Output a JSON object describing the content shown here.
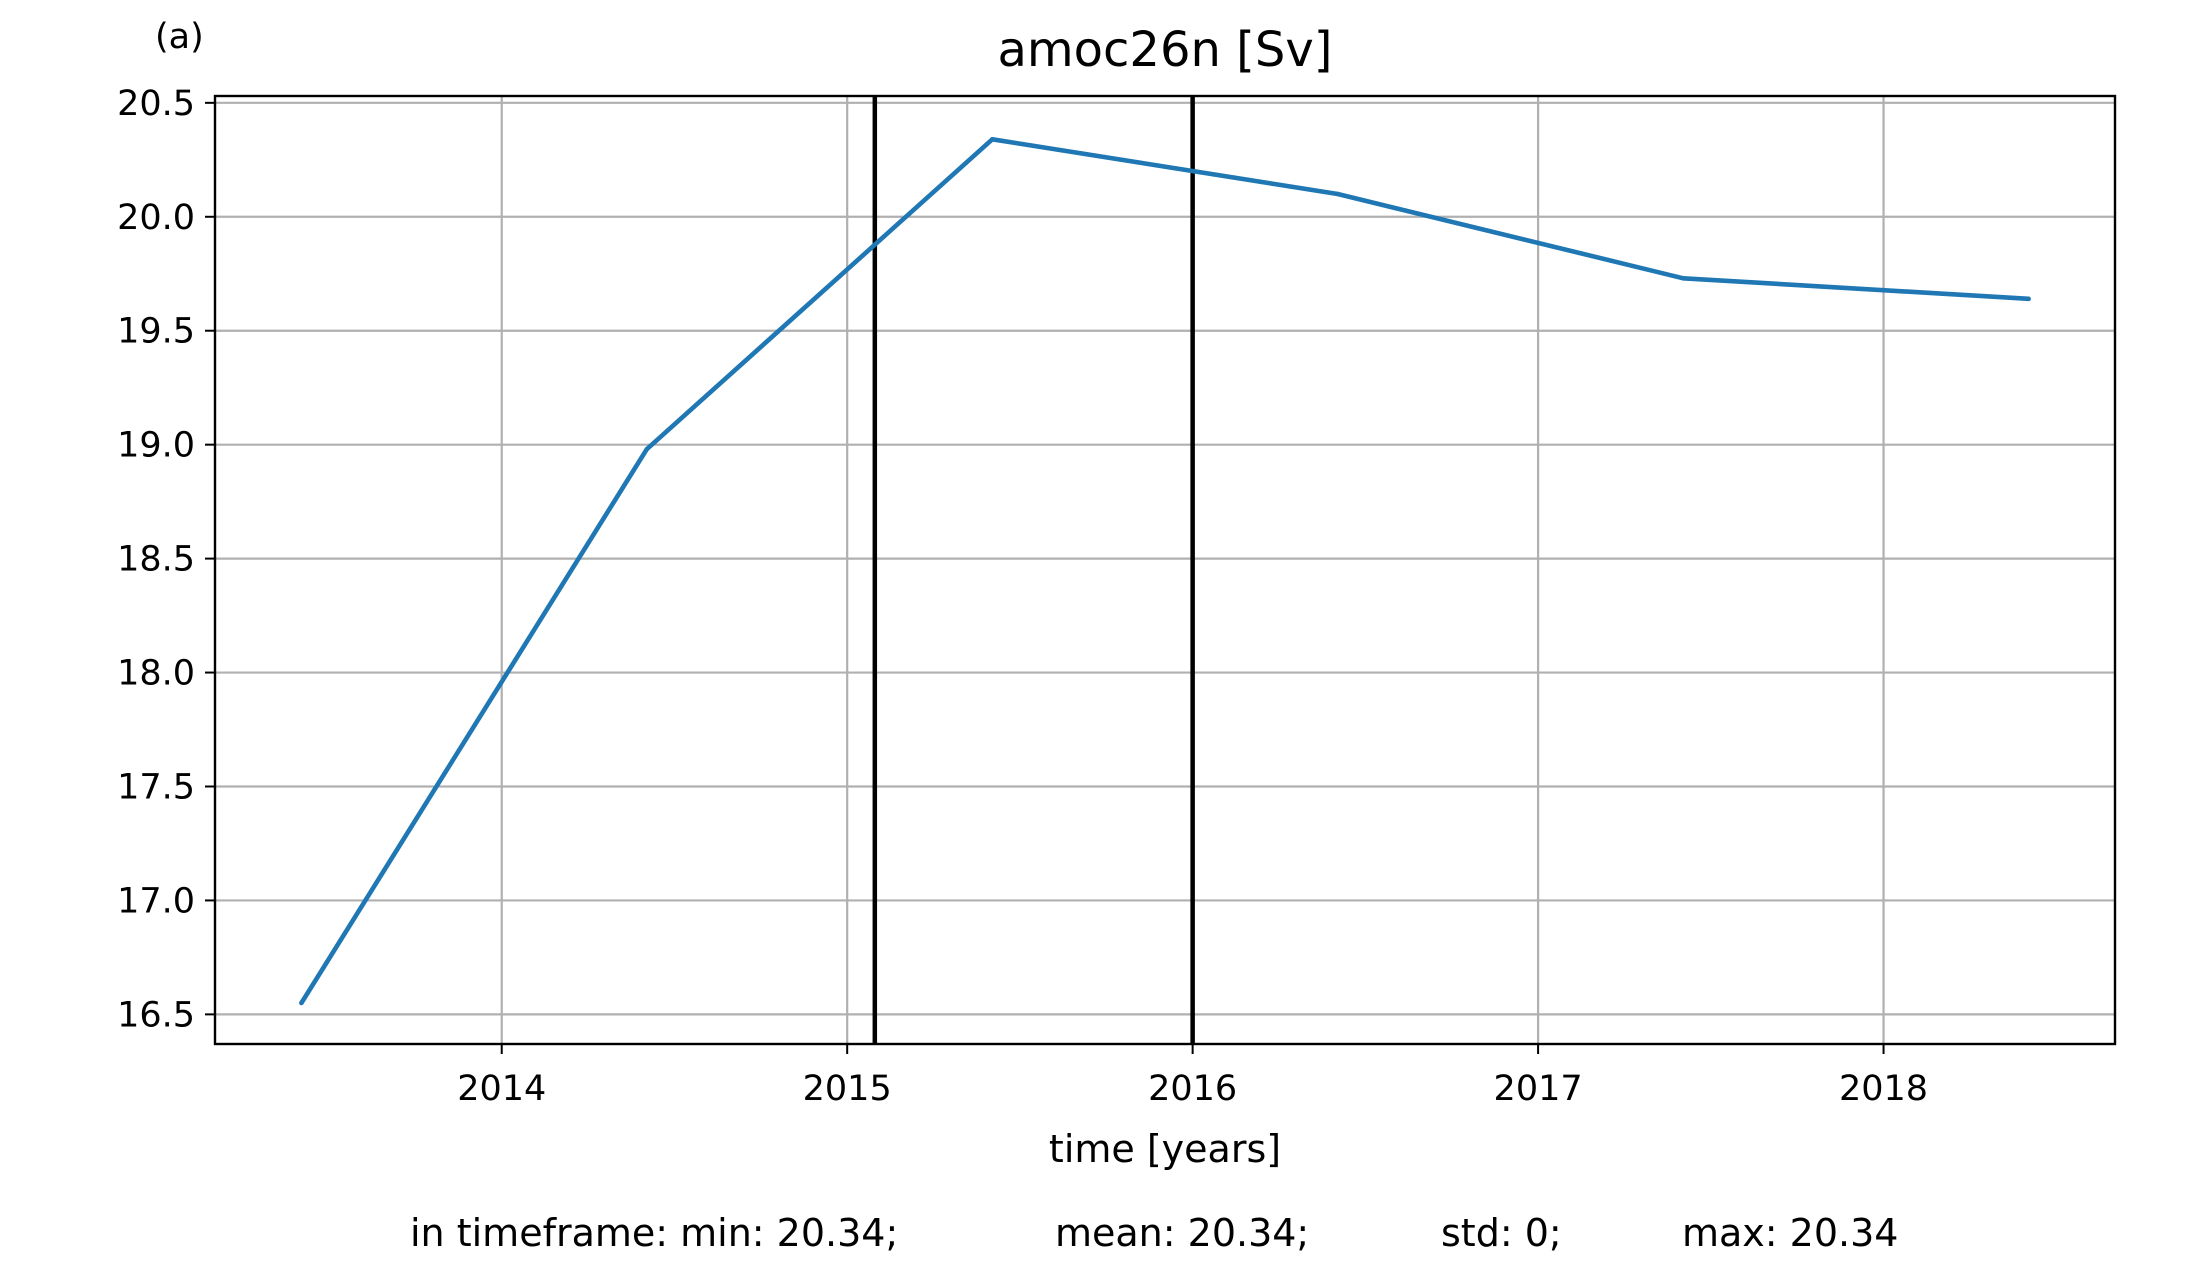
{
  "panel_label": "(a)",
  "chart_data": {
    "type": "line",
    "title": "amoc26n [Sv]",
    "xlabel": "time [years]",
    "ylabel": "",
    "xlim": [
      2013.17,
      2018.67
    ],
    "ylim": [
      16.37,
      20.53
    ],
    "xticks": [
      2014,
      2015,
      2016,
      2017,
      2018
    ],
    "xtick_labels": [
      "2014",
      "2015",
      "2016",
      "2017",
      "2018"
    ],
    "yticks": [
      16.5,
      17.0,
      17.5,
      18.0,
      18.5,
      19.0,
      19.5,
      20.0,
      20.5
    ],
    "ytick_labels": [
      "16.5",
      "17.0",
      "17.5",
      "18.0",
      "18.5",
      "19.0",
      "19.5",
      "20.0",
      "20.5"
    ],
    "grid": true,
    "series": [
      {
        "color": "#1f77b4",
        "x": [
          2013.42,
          2014.42,
          2015.42,
          2016.42,
          2017.42,
          2018.42
        ],
        "y": [
          16.55,
          18.98,
          20.34,
          20.1,
          19.73,
          19.64
        ]
      }
    ],
    "vlines": [
      {
        "x": 2015.08,
        "color": "#000000"
      },
      {
        "x": 2016.0,
        "color": "#000000"
      }
    ]
  },
  "stats": {
    "min": "in timeframe: min: 20.34;",
    "mean": "mean: 20.34;",
    "std": "std: 0;",
    "max": "max: 20.34"
  }
}
